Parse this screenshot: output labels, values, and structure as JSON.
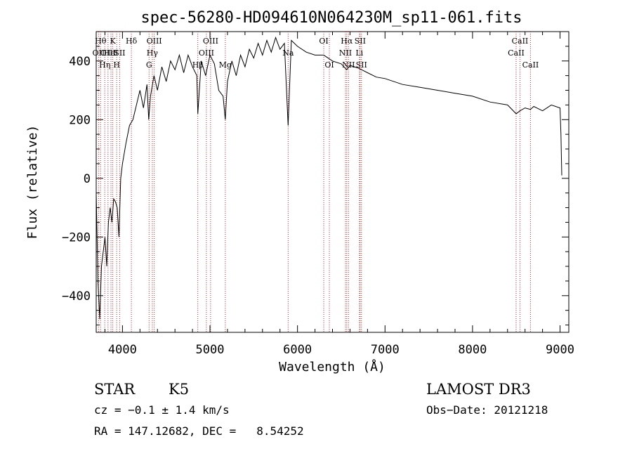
{
  "chart_data": {
    "type": "line",
    "title": "spec-56280-HD094610N064230M_sp11-061.fits",
    "xlabel": "Wavelength (Å)",
    "ylabel": "Flux (relative)",
    "xlim": [
      3700,
      9100
    ],
    "ylim": [
      -525,
      500
    ],
    "xticks": [
      4000,
      5000,
      6000,
      7000,
      8000,
      9000
    ],
    "yticks": [
      -400,
      -200,
      0,
      200,
      400
    ],
    "series": [
      {
        "name": "flux",
        "x": [
          3700,
          3720,
          3740,
          3760,
          3780,
          3800,
          3820,
          3840,
          3860,
          3880,
          3900,
          3920,
          3940,
          3960,
          3980,
          4000,
          4040,
          4080,
          4120,
          4160,
          4200,
          4240,
          4280,
          4300,
          4320,
          4360,
          4400,
          4450,
          4500,
          4550,
          4600,
          4650,
          4700,
          4750,
          4800,
          4850,
          4861,
          4900,
          4950,
          5000,
          5050,
          5100,
          5150,
          5175,
          5200,
          5250,
          5300,
          5350,
          5400,
          5450,
          5500,
          5550,
          5600,
          5650,
          5700,
          5750,
          5800,
          5850,
          5893,
          5930,
          6000,
          6100,
          6200,
          6300,
          6400,
          6500,
          6563,
          6600,
          6700,
          6800,
          6900,
          7000,
          7200,
          7400,
          7600,
          7800,
          8000,
          8200,
          8400,
          8498,
          8542,
          8600,
          8662,
          8700,
          8800,
          8900,
          9000,
          9010,
          9020
        ],
        "values": [
          -50,
          -350,
          -480,
          -300,
          -250,
          -200,
          -300,
          -150,
          -100,
          -150,
          -70,
          -80,
          -100,
          -200,
          0,
          50,
          120,
          180,
          200,
          250,
          300,
          240,
          320,
          200,
          280,
          350,
          300,
          380,
          330,
          400,
          370,
          420,
          360,
          420,
          380,
          350,
          220,
          400,
          350,
          420,
          390,
          300,
          280,
          200,
          330,
          400,
          350,
          420,
          380,
          440,
          410,
          460,
          420,
          470,
          430,
          480,
          440,
          460,
          180,
          470,
          450,
          430,
          420,
          420,
          400,
          390,
          370,
          385,
          375,
          360,
          345,
          340,
          320,
          310,
          300,
          290,
          280,
          260,
          250,
          220,
          230,
          240,
          235,
          245,
          230,
          250,
          240,
          150,
          10
        ]
      }
    ],
    "lines": [
      {
        "x": 3727,
        "row": 1,
        "label": "OII"
      },
      {
        "x": 3750,
        "row": 0,
        "label": "Hθ"
      },
      {
        "x": 3798,
        "row": 2,
        "label": "Hη"
      },
      {
        "x": 3835,
        "row": 1,
        "label": "OIII"
      },
      {
        "x": 3869,
        "row": 1,
        "label": "HeI"
      },
      {
        "x": 3889,
        "row": 0,
        "label": "K"
      },
      {
        "x": 3934,
        "row": 2,
        "label": "H"
      },
      {
        "x": 3968,
        "row": 1,
        "label": "SII"
      },
      {
        "x": 4102,
        "row": 0,
        "label": "Hδ"
      },
      {
        "x": 4304,
        "row": 2,
        "label": "G"
      },
      {
        "x": 4341,
        "row": 1,
        "label": "Hγ"
      },
      {
        "x": 4363,
        "row": 0,
        "label": "OIII"
      },
      {
        "x": 4861,
        "row": 2,
        "label": "Hβ"
      },
      {
        "x": 4959,
        "row": 1,
        "label": "OIII"
      },
      {
        "x": 5007,
        "row": 0,
        "label": "OIII"
      },
      {
        "x": 5175,
        "row": 2,
        "label": "Mg"
      },
      {
        "x": 5893,
        "row": 1,
        "label": "Na"
      },
      {
        "x": 6300,
        "row": 0,
        "label": "OI"
      },
      {
        "x": 6364,
        "row": 2,
        "label": "OI"
      },
      {
        "x": 6548,
        "row": 1,
        "label": "NII"
      },
      {
        "x": 6563,
        "row": 0,
        "label": "Hα"
      },
      {
        "x": 6583,
        "row": 2,
        "label": "NII"
      },
      {
        "x": 6707,
        "row": 1,
        "label": "Li"
      },
      {
        "x": 6716,
        "row": 0,
        "label": "SII"
      },
      {
        "x": 6731,
        "row": 2,
        "label": "SII"
      },
      {
        "x": 8498,
        "row": 1,
        "label": "CaII"
      },
      {
        "x": 8542,
        "row": 0,
        "label": "CaII"
      },
      {
        "x": 8662,
        "row": 2,
        "label": "CaII"
      }
    ]
  },
  "info": {
    "object_class": "STAR",
    "subclass": "K5",
    "redshift_text": "cz = −0.1 ± 1.4 km/s",
    "coords_text": "RA = 147.12682, DEC =   8.54252",
    "survey": "LAMOST DR3",
    "obs_date": "Obs−Date: 20121218"
  }
}
